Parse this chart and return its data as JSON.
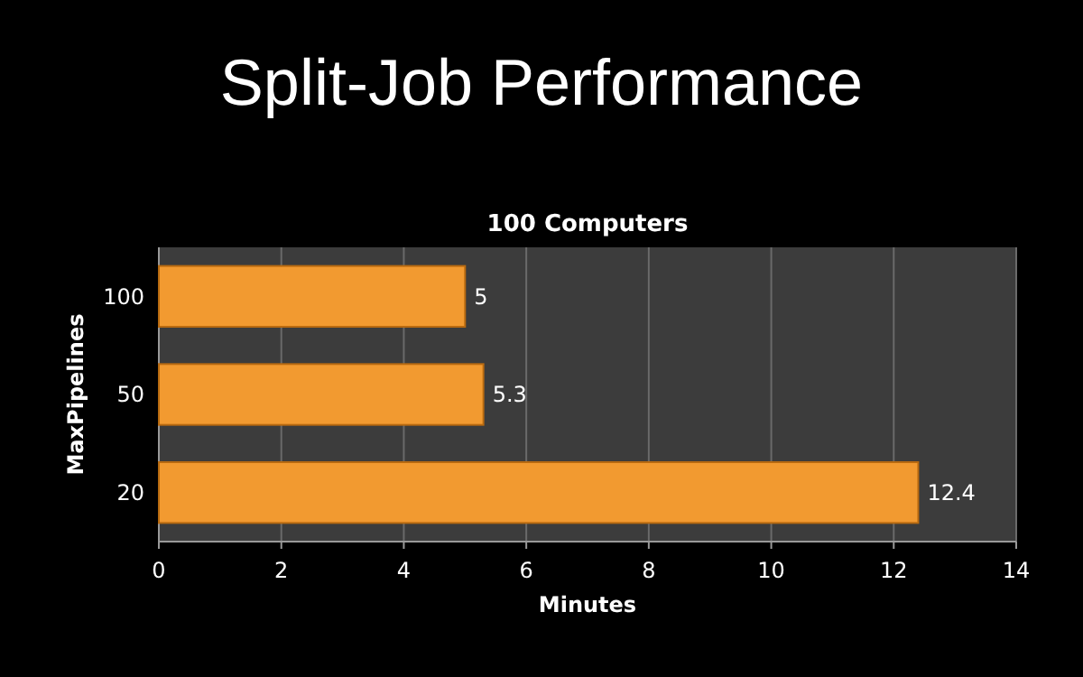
{
  "chart_data": {
    "type": "bar",
    "orientation": "horizontal",
    "title": "Split-Job Performance",
    "subtitle": "100 Computers",
    "xlabel": "Minutes",
    "ylabel": "MaxPipelines",
    "categories": [
      "100",
      "50",
      "20"
    ],
    "values": [
      5,
      5.3,
      12.4
    ],
    "color": "#f29a30",
    "xlim": [
      0,
      14
    ],
    "xticks": [
      0,
      2,
      4,
      6,
      8,
      10,
      12,
      14
    ],
    "grid": "x",
    "data_labels": true
  }
}
